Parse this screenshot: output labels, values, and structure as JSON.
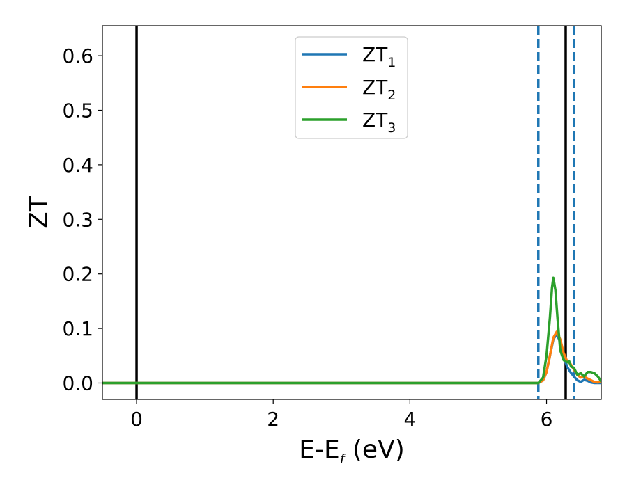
{
  "chart_data": {
    "type": "line",
    "title": "",
    "xlabel": {
      "main": "E-E",
      "sub": "f",
      "unit": " (eV)"
    },
    "ylabel": "ZT",
    "xlim": [
      -0.5,
      6.8
    ],
    "ylim": [
      -0.03,
      0.655
    ],
    "xticks": [
      0,
      2,
      4,
      6
    ],
    "xtick_labels": [
      "0",
      "2",
      "4",
      "6"
    ],
    "yticks": [
      0.0,
      0.1,
      0.2,
      0.3,
      0.4,
      0.5,
      0.6
    ],
    "ytick_labels": [
      "0.0",
      "0.1",
      "0.2",
      "0.3",
      "0.4",
      "0.5",
      "0.6"
    ],
    "grid": false,
    "legend_position": "top-center",
    "vlines": [
      {
        "x": 0.0,
        "style": "solid",
        "color": "#000000"
      },
      {
        "x": 5.88,
        "style": "dashed",
        "color": "#1f77b4"
      },
      {
        "x": 6.28,
        "style": "solid",
        "color": "#000000"
      },
      {
        "x": 6.4,
        "style": "dashed",
        "color": "#1f77b4"
      }
    ],
    "series": [
      {
        "name": "ZT",
        "name_sub": "1",
        "color": "#1f77b4",
        "x": [
          -0.5,
          5.88,
          5.95,
          6.0,
          6.05,
          6.1,
          6.15,
          6.2,
          6.25,
          6.3,
          6.35,
          6.4,
          6.45,
          6.5,
          6.55,
          6.6,
          6.65,
          6.7,
          6.75,
          6.8
        ],
        "y": [
          0.0,
          0.0,
          0.005,
          0.02,
          0.05,
          0.08,
          0.09,
          0.075,
          0.05,
          0.03,
          0.02,
          0.012,
          0.005,
          0.002,
          0.006,
          0.004,
          0.001,
          0.0,
          0.0,
          0.0
        ]
      },
      {
        "name": "ZT",
        "name_sub": "2",
        "color": "#ff7f0e",
        "x": [
          -0.5,
          5.88,
          5.95,
          6.0,
          6.05,
          6.1,
          6.15,
          6.2,
          6.25,
          6.3,
          6.35,
          6.4,
          6.45,
          6.5,
          6.55,
          6.6,
          6.65,
          6.7,
          6.75,
          6.8
        ],
        "y": [
          0.0,
          0.0,
          0.005,
          0.02,
          0.05,
          0.083,
          0.094,
          0.08,
          0.055,
          0.04,
          0.035,
          0.025,
          0.015,
          0.01,
          0.012,
          0.008,
          0.005,
          0.002,
          0.001,
          0.003
        ]
      },
      {
        "name": "ZT",
        "name_sub": "3",
        "color": "#2ca02c",
        "x": [
          -0.5,
          5.88,
          5.95,
          6.0,
          6.05,
          6.08,
          6.1,
          6.13,
          6.16,
          6.2,
          6.25,
          6.3,
          6.33,
          6.36,
          6.4,
          6.45,
          6.5,
          6.55,
          6.6,
          6.65,
          6.7,
          6.75,
          6.8
        ],
        "y": [
          0.0,
          0.0,
          0.01,
          0.05,
          0.12,
          0.175,
          0.193,
          0.17,
          0.12,
          0.06,
          0.042,
          0.038,
          0.04,
          0.03,
          0.028,
          0.015,
          0.018,
          0.012,
          0.02,
          0.02,
          0.018,
          0.012,
          0.003
        ]
      }
    ]
  }
}
